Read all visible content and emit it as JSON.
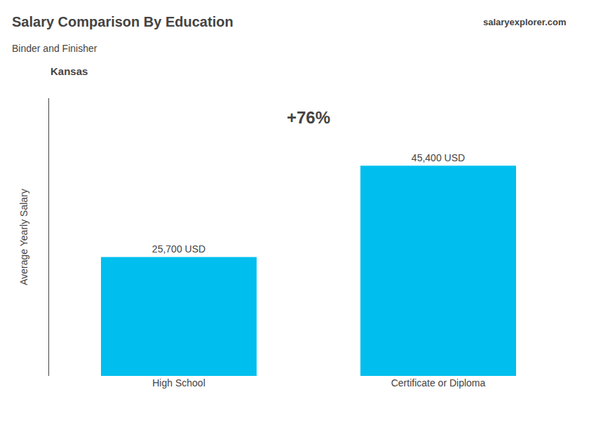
{
  "chart_data": {
    "type": "bar",
    "title": "Salary Comparison By Education",
    "subtitle": "Binder and Finisher",
    "ylabel": "Average Yearly Salary",
    "categories": [
      "High School",
      "Certificate or Diploma"
    ],
    "values": [
      25700,
      45400
    ],
    "value_labels": [
      "25,700 USD",
      "45,400 USD"
    ],
    "data_labels": true,
    "color": "#00BFEE",
    "ylim": [
      0,
      60000
    ],
    "grid": false,
    "tick_labels": "x",
    "annotations": [
      "Kansas",
      "+76%",
      "salaryexplorer.com"
    ]
  }
}
